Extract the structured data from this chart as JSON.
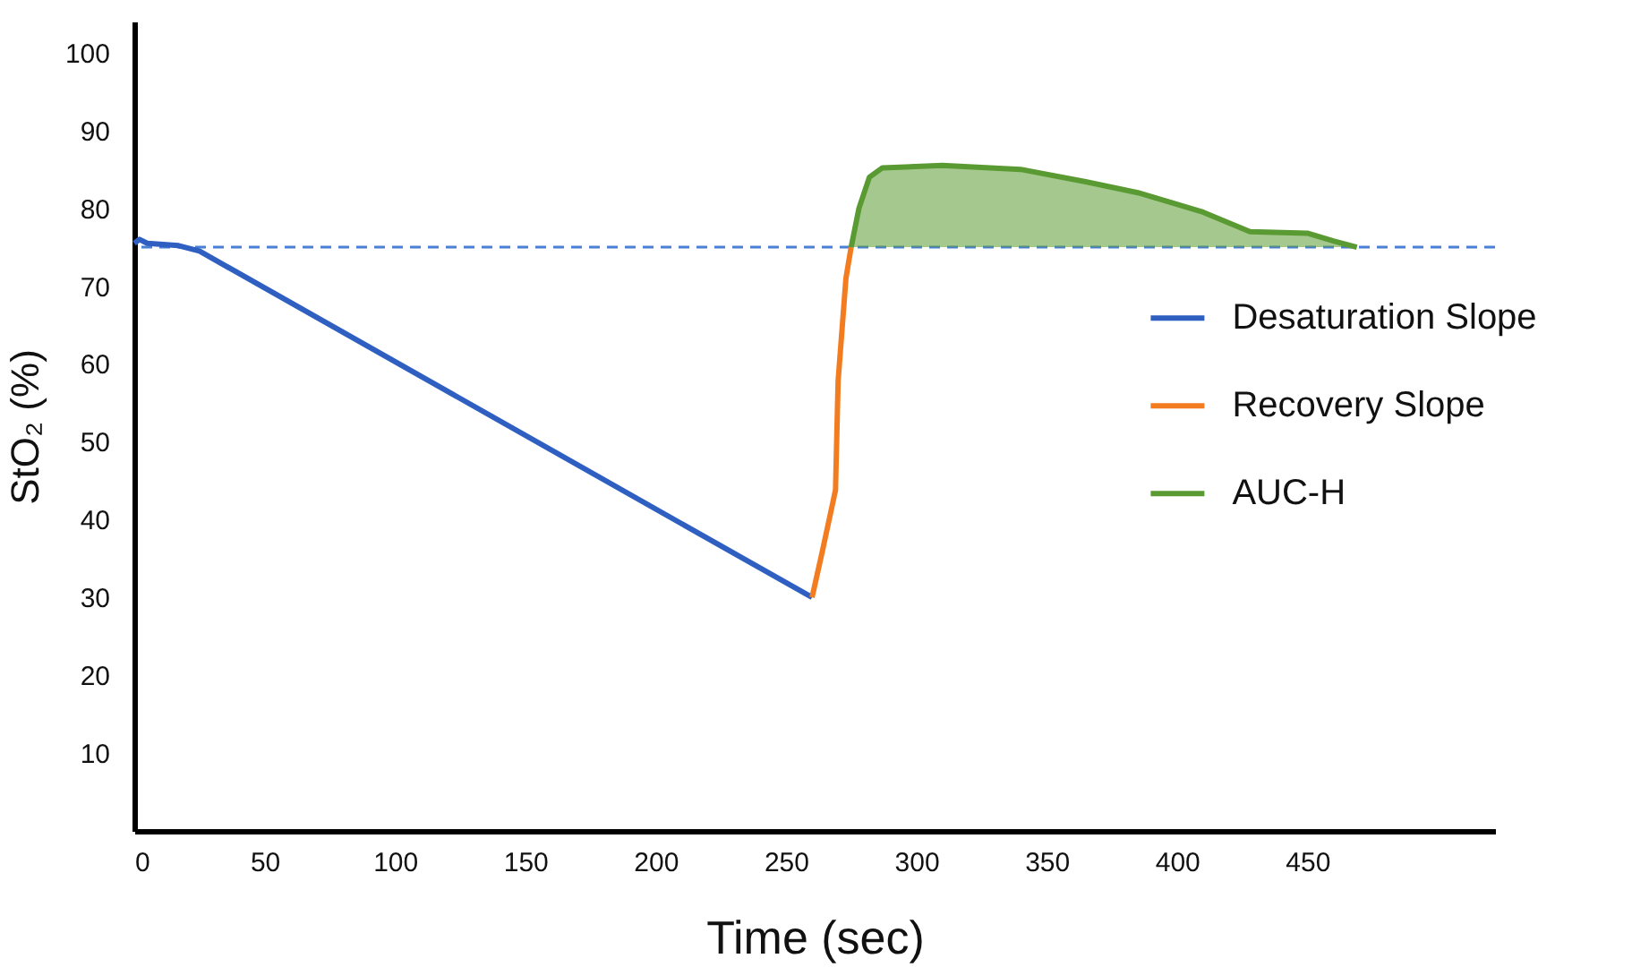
{
  "chart_data": {
    "type": "line",
    "xlabel": "Time (sec)",
    "ylabel": "StO₂ (%)",
    "xlim": [
      0,
      522
    ],
    "xticks": [
      0,
      50,
      100,
      150,
      200,
      250,
      300,
      350,
      400,
      450
    ],
    "ylim": [
      0,
      104
    ],
    "yticks": [
      10,
      20,
      30,
      40,
      50,
      60,
      70,
      80,
      90,
      100
    ],
    "grid": false,
    "legend": "right",
    "marker": "none",
    "line_style": "solid",
    "ref_lines": [
      {
        "axis": "y",
        "value": 75,
        "color": "#4a7fd6",
        "line_style": "dashed"
      }
    ],
    "series": [
      {
        "name": "Desaturation Slope",
        "color": "#2e5fc1",
        "x": [
          0,
          2,
          5,
          17,
          25,
          260
        ],
        "values": [
          75.5,
          76,
          75.5,
          75.2,
          74.5,
          30
        ]
      },
      {
        "name": "Recovery Slope",
        "color": "#f47c20",
        "x": [
          260,
          264,
          269,
          270,
          273,
          275
        ],
        "values": [
          30,
          36,
          43.8,
          57.8,
          71,
          75
        ]
      },
      {
        "name": "AUC-H",
        "color": "#5a9a32",
        "x": [
          275,
          278,
          282,
          287,
          310,
          340,
          365,
          385,
          410,
          428,
          450,
          460,
          469
        ],
        "values": [
          75,
          80,
          84,
          85.2,
          85.5,
          85,
          83.4,
          82,
          79.5,
          77,
          76.8,
          75.8,
          75
        ],
        "lower": [
          75,
          75,
          75,
          75,
          75,
          75,
          75,
          75,
          75,
          75,
          75,
          75,
          75
        ],
        "upper": [
          75,
          80,
          84,
          85.2,
          85.5,
          85,
          83.4,
          82,
          79.5,
          77,
          76.8,
          75.8,
          75
        ]
      }
    ]
  }
}
